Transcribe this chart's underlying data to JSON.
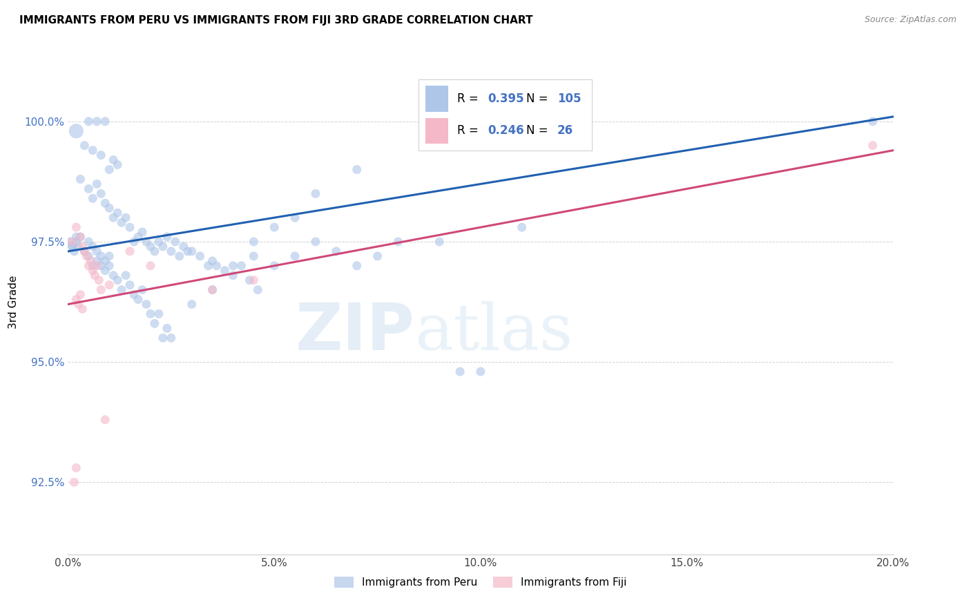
{
  "title": "IMMIGRANTS FROM PERU VS IMMIGRANTS FROM FIJI 3RD GRADE CORRELATION CHART",
  "source": "Source: ZipAtlas.com",
  "ylabel": "3rd Grade",
  "x_min": 0.0,
  "x_max": 20.0,
  "y_min": 91.0,
  "y_max": 101.5,
  "ytick_labels": [
    "92.5%",
    "95.0%",
    "97.5%",
    "100.0%"
  ],
  "ytick_values": [
    92.5,
    95.0,
    97.5,
    100.0
  ],
  "xtick_labels": [
    "0.0%",
    "5.0%",
    "10.0%",
    "15.0%",
    "20.0%"
  ],
  "xtick_values": [
    0.0,
    5.0,
    10.0,
    15.0,
    20.0
  ],
  "legend_label_blue": "Immigrants from Peru",
  "legend_label_pink": "Immigrants from Fiji",
  "R_blue": 0.395,
  "N_blue": 105,
  "R_pink": 0.246,
  "N_pink": 26,
  "blue_color": "#aec6e8",
  "pink_color": "#f4b8c8",
  "line_blue": "#2060b0",
  "line_pink": "#d04878",
  "watermark_zip": "ZIP",
  "watermark_atlas": "atlas",
  "blue_line_x0": 0.0,
  "blue_line_x1": 20.0,
  "blue_line_y0": 97.3,
  "blue_line_y1": 100.1,
  "pink_line_x0": 0.0,
  "pink_line_x1": 20.0,
  "pink_line_y0": 96.2,
  "pink_line_y1": 99.4,
  "blue_x": [
    0.2,
    0.5,
    0.7,
    0.9,
    0.4,
    0.6,
    0.8,
    1.0,
    1.1,
    1.2,
    0.3,
    0.5,
    0.6,
    0.7,
    0.8,
    0.9,
    1.0,
    1.1,
    1.2,
    1.3,
    1.4,
    1.5,
    1.6,
    1.7,
    1.8,
    1.9,
    2.0,
    2.1,
    2.2,
    2.3,
    2.4,
    2.5,
    2.6,
    2.7,
    2.8,
    2.9,
    3.0,
    3.2,
    3.4,
    3.5,
    3.6,
    3.8,
    4.0,
    4.2,
    4.4,
    4.5,
    4.6,
    5.0,
    5.5,
    6.0,
    6.5,
    7.0,
    7.5,
    8.0,
    9.0,
    10.0,
    11.0,
    19.5,
    0.1,
    0.2,
    0.3,
    0.4,
    0.5,
    0.5,
    0.6,
    0.6,
    0.7,
    0.7,
    0.8,
    0.8,
    0.9,
    0.9,
    1.0,
    1.0,
    1.1,
    1.2,
    1.3,
    1.4,
    1.5,
    1.6,
    1.7,
    1.8,
    1.9,
    2.0,
    2.1,
    2.2,
    2.3,
    2.4,
    2.5,
    3.0,
    3.5,
    4.0,
    4.5,
    5.0,
    5.5,
    6.0,
    7.0,
    9.5,
    0.05,
    0.1,
    0.15,
    0.2,
    0.25
  ],
  "blue_y": [
    99.8,
    100.0,
    100.0,
    100.0,
    99.5,
    99.4,
    99.3,
    99.0,
    99.2,
    99.1,
    98.8,
    98.6,
    98.4,
    98.7,
    98.5,
    98.3,
    98.2,
    98.0,
    98.1,
    97.9,
    98.0,
    97.8,
    97.5,
    97.6,
    97.7,
    97.5,
    97.4,
    97.3,
    97.5,
    97.4,
    97.6,
    97.3,
    97.5,
    97.2,
    97.4,
    97.3,
    97.3,
    97.2,
    97.0,
    97.1,
    97.0,
    96.9,
    96.8,
    97.0,
    96.7,
    97.2,
    96.5,
    97.0,
    97.2,
    97.5,
    97.3,
    97.0,
    97.2,
    97.5,
    97.5,
    94.8,
    97.8,
    100.0,
    97.4,
    97.5,
    97.6,
    97.3,
    97.5,
    97.2,
    97.4,
    97.0,
    97.3,
    97.1,
    97.2,
    97.0,
    97.1,
    96.9,
    97.0,
    97.2,
    96.8,
    96.7,
    96.5,
    96.8,
    96.6,
    96.4,
    96.3,
    96.5,
    96.2,
    96.0,
    95.8,
    96.0,
    95.5,
    95.7,
    95.5,
    96.2,
    96.5,
    97.0,
    97.5,
    97.8,
    98.0,
    98.5,
    99.0,
    94.8,
    97.5,
    97.4,
    97.3,
    97.6,
    97.4
  ],
  "blue_sizes": [
    220,
    80,
    80,
    80,
    80,
    80,
    80,
    80,
    80,
    80,
    80,
    80,
    80,
    80,
    80,
    80,
    80,
    80,
    80,
    80,
    80,
    80,
    80,
    80,
    80,
    80,
    80,
    80,
    80,
    80,
    80,
    80,
    80,
    80,
    80,
    80,
    80,
    80,
    80,
    80,
    80,
    80,
    80,
    80,
    80,
    80,
    80,
    80,
    80,
    80,
    80,
    80,
    80,
    80,
    80,
    80,
    80,
    80,
    80,
    80,
    80,
    80,
    80,
    80,
    80,
    80,
    80,
    80,
    80,
    80,
    80,
    80,
    80,
    80,
    80,
    80,
    80,
    80,
    80,
    80,
    80,
    80,
    80,
    80,
    80,
    80,
    80,
    80,
    80,
    80,
    80,
    80,
    80,
    80,
    80,
    80,
    80,
    80,
    80,
    80,
    80,
    80,
    80
  ],
  "pink_x": [
    0.1,
    0.2,
    0.3,
    0.35,
    0.4,
    0.45,
    0.5,
    0.55,
    0.6,
    0.65,
    0.7,
    0.75,
    0.8,
    0.2,
    0.25,
    0.3,
    0.35,
    1.5,
    2.0,
    3.5,
    4.5,
    0.15,
    0.2,
    19.5,
    1.0,
    0.9
  ],
  "pink_y": [
    97.5,
    97.8,
    97.6,
    97.4,
    97.3,
    97.2,
    97.0,
    97.1,
    96.9,
    96.8,
    97.0,
    96.7,
    96.5,
    96.3,
    96.2,
    96.4,
    96.1,
    97.3,
    97.0,
    96.5,
    96.7,
    92.5,
    92.8,
    99.5,
    96.6,
    93.8
  ],
  "pink_sizes": [
    80,
    80,
    80,
    80,
    80,
    80,
    80,
    80,
    80,
    80,
    80,
    80,
    80,
    80,
    80,
    80,
    80,
    80,
    80,
    80,
    80,
    80,
    80,
    80,
    80,
    80
  ]
}
